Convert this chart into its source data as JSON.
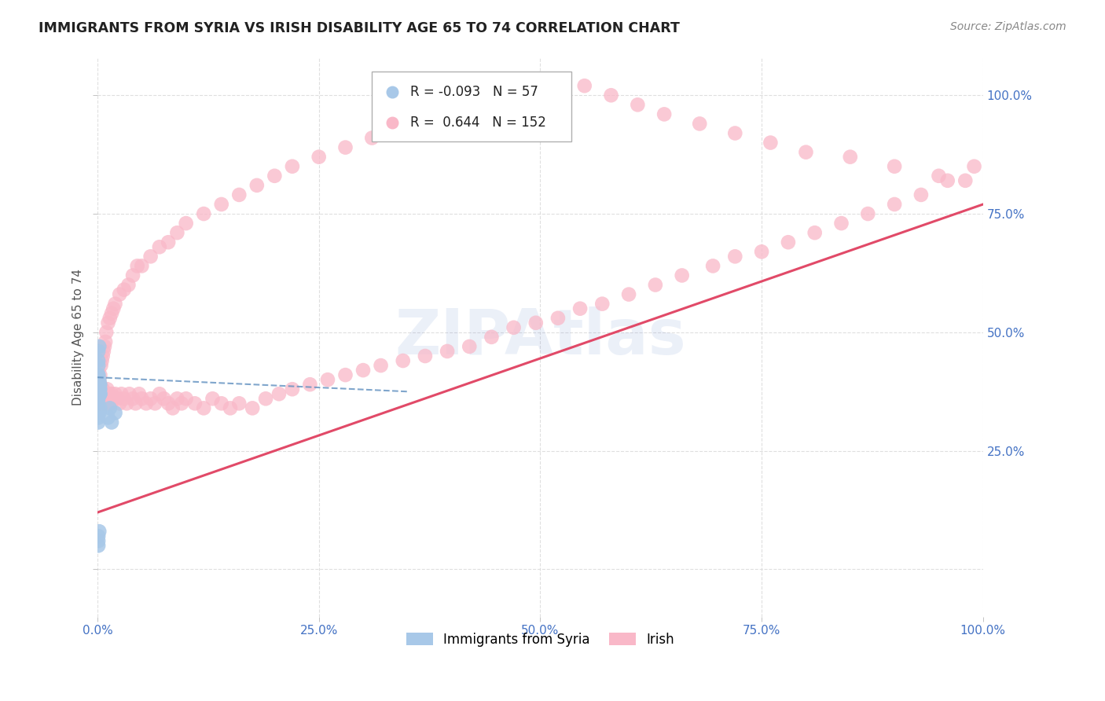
{
  "title": "IMMIGRANTS FROM SYRIA VS IRISH DISABILITY AGE 65 TO 74 CORRELATION CHART",
  "source": "Source: ZipAtlas.com",
  "ylabel": "Disability Age 65 to 74",
  "xmin": 0.0,
  "xmax": 1.0,
  "ymin": -0.1,
  "ymax": 1.08,
  "xticks": [
    0.0,
    0.25,
    0.5,
    0.75,
    1.0
  ],
  "yticks": [
    0.0,
    0.25,
    0.5,
    0.75,
    1.0
  ],
  "xticklabels": [
    "0.0%",
    "25.0%",
    "50.0%",
    "75.0%",
    "100.0%"
  ],
  "yticklabels_right": [
    "",
    "25.0%",
    "50.0%",
    "75.0%",
    "100.0%"
  ],
  "legend_blue_r": "-0.093",
  "legend_blue_n": "57",
  "legend_pink_r": "0.644",
  "legend_pink_n": "152",
  "blue_color": "#a8c8e8",
  "pink_color": "#f9b8c8",
  "blue_line_color": "#6090c0",
  "pink_line_color": "#e04060",
  "title_color": "#222222",
  "axis_label_color": "#555555",
  "tick_label_color": "#4472c4",
  "grid_color": "#d8d8d8",
  "background_color": "#ffffff",
  "blue_scatter_x": [
    0.001,
    0.002,
    0.001,
    0.003,
    0.001,
    0.002,
    0.001,
    0.002,
    0.001,
    0.001,
    0.002,
    0.001,
    0.003,
    0.001,
    0.002,
    0.001,
    0.002,
    0.001,
    0.001,
    0.002,
    0.001,
    0.002,
    0.001,
    0.002,
    0.001,
    0.003,
    0.001,
    0.002,
    0.001,
    0.002,
    0.001,
    0.002,
    0.001,
    0.001,
    0.002,
    0.001,
    0.003,
    0.002,
    0.001,
    0.002,
    0.001,
    0.002,
    0.001,
    0.003,
    0.001,
    0.014,
    0.02,
    0.012,
    0.016,
    0.001,
    0.002,
    0.001,
    0.001,
    0.001,
    0.001,
    0.002,
    0.001
  ],
  "blue_scatter_y": [
    0.38,
    0.4,
    0.39,
    0.37,
    0.41,
    0.38,
    0.4,
    0.39,
    0.38,
    0.41,
    0.37,
    0.4,
    0.39,
    0.38,
    0.39,
    0.4,
    0.38,
    0.37,
    0.39,
    0.38,
    0.36,
    0.39,
    0.38,
    0.37,
    0.4,
    0.38,
    0.39,
    0.38,
    0.37,
    0.39,
    0.38,
    0.37,
    0.39,
    0.4,
    0.38,
    0.39,
    0.37,
    0.38,
    0.4,
    0.39,
    0.35,
    0.33,
    0.31,
    0.34,
    0.32,
    0.34,
    0.33,
    0.32,
    0.31,
    0.44,
    0.47,
    0.46,
    0.43,
    0.07,
    0.05,
    0.08,
    0.06
  ],
  "pink_scatter_x": [
    0.001,
    0.002,
    0.001,
    0.002,
    0.003,
    0.002,
    0.001,
    0.002,
    0.003,
    0.002,
    0.003,
    0.004,
    0.003,
    0.004,
    0.005,
    0.004,
    0.005,
    0.006,
    0.005,
    0.006,
    0.007,
    0.008,
    0.009,
    0.01,
    0.011,
    0.012,
    0.013,
    0.015,
    0.016,
    0.018,
    0.02,
    0.022,
    0.025,
    0.027,
    0.03,
    0.033,
    0.036,
    0.04,
    0.043,
    0.047,
    0.05,
    0.055,
    0.06,
    0.065,
    0.07,
    0.075,
    0.08,
    0.085,
    0.09,
    0.095,
    0.1,
    0.11,
    0.12,
    0.13,
    0.14,
    0.15,
    0.16,
    0.175,
    0.19,
    0.205,
    0.22,
    0.24,
    0.26,
    0.28,
    0.3,
    0.32,
    0.345,
    0.37,
    0.395,
    0.42,
    0.445,
    0.47,
    0.495,
    0.52,
    0.545,
    0.57,
    0.6,
    0.63,
    0.66,
    0.695,
    0.72,
    0.75,
    0.78,
    0.81,
    0.84,
    0.87,
    0.9,
    0.93,
    0.96,
    0.99,
    0.001,
    0.002,
    0.003,
    0.004,
    0.005,
    0.006,
    0.007,
    0.008,
    0.009,
    0.01,
    0.012,
    0.014,
    0.016,
    0.018,
    0.02,
    0.025,
    0.03,
    0.035,
    0.04,
    0.045,
    0.05,
    0.06,
    0.07,
    0.08,
    0.09,
    0.1,
    0.12,
    0.14,
    0.16,
    0.18,
    0.2,
    0.22,
    0.25,
    0.28,
    0.31,
    0.34,
    0.37,
    0.4,
    0.43,
    0.46,
    0.49,
    0.52,
    0.55,
    0.58,
    0.61,
    0.64,
    0.68,
    0.72,
    0.76,
    0.8,
    0.85,
    0.9,
    0.95,
    0.98,
    0.003,
    0.005,
    0.008,
    0.012,
    0.002,
    0.004,
    0.006,
    0.01,
    0.015
  ],
  "pink_scatter_y": [
    0.36,
    0.38,
    0.37,
    0.35,
    0.39,
    0.36,
    0.38,
    0.35,
    0.37,
    0.36,
    0.38,
    0.36,
    0.37,
    0.35,
    0.38,
    0.36,
    0.37,
    0.36,
    0.38,
    0.37,
    0.36,
    0.35,
    0.37,
    0.36,
    0.38,
    0.36,
    0.37,
    0.35,
    0.37,
    0.36,
    0.37,
    0.36,
    0.35,
    0.37,
    0.36,
    0.35,
    0.37,
    0.36,
    0.35,
    0.37,
    0.36,
    0.35,
    0.36,
    0.35,
    0.37,
    0.36,
    0.35,
    0.34,
    0.36,
    0.35,
    0.36,
    0.35,
    0.34,
    0.36,
    0.35,
    0.34,
    0.35,
    0.34,
    0.36,
    0.37,
    0.38,
    0.39,
    0.4,
    0.41,
    0.42,
    0.43,
    0.44,
    0.45,
    0.46,
    0.47,
    0.49,
    0.51,
    0.52,
    0.53,
    0.55,
    0.56,
    0.58,
    0.6,
    0.62,
    0.64,
    0.66,
    0.67,
    0.69,
    0.71,
    0.73,
    0.75,
    0.77,
    0.79,
    0.82,
    0.85,
    0.42,
    0.4,
    0.41,
    0.43,
    0.44,
    0.45,
    0.46,
    0.47,
    0.48,
    0.5,
    0.52,
    0.53,
    0.54,
    0.55,
    0.56,
    0.58,
    0.59,
    0.6,
    0.62,
    0.64,
    0.64,
    0.66,
    0.68,
    0.69,
    0.71,
    0.73,
    0.75,
    0.77,
    0.79,
    0.81,
    0.83,
    0.85,
    0.87,
    0.89,
    0.91,
    0.93,
    0.95,
    0.97,
    0.98,
    0.99,
    1.0,
    1.01,
    1.02,
    1.0,
    0.98,
    0.96,
    0.94,
    0.92,
    0.9,
    0.88,
    0.87,
    0.85,
    0.83,
    0.82,
    0.38,
    0.37,
    0.36,
    0.35,
    0.36,
    0.37,
    0.38,
    0.36,
    0.35
  ],
  "pink_line_x0": 0.0,
  "pink_line_y0": 0.12,
  "pink_line_x1": 1.0,
  "pink_line_y1": 0.77,
  "blue_line_x0": 0.0,
  "blue_line_y0": 0.405,
  "blue_line_x1": 0.35,
  "blue_line_y1": 0.375
}
